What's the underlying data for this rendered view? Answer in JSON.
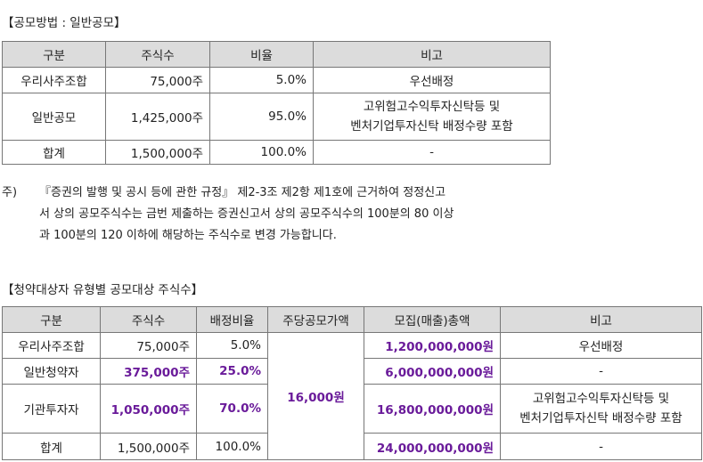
{
  "section1": {
    "heading": "【공모방법 : 일반공모】",
    "headers": [
      "구분",
      "주식수",
      "비율",
      "비고"
    ],
    "rows": [
      [
        "우리사주조합",
        "75,000주",
        "5.0%",
        "우선배정"
      ],
      [
        "일반공모",
        "1,425,000주",
        "95.0%",
        "고위험고수익투자신탁등 및\n벤처기업투자신탁 배정수량 포함"
      ],
      [
        "합계",
        "1,500,000주",
        "100.0%",
        "-"
      ]
    ]
  },
  "note": {
    "mark": "주)",
    "lines": [
      "『증권의 발행 및 공시 등에 관한 규정』 제2-3조 제2항 제1호에 근거하여 정정신고",
      "서 상의 공모주식수는 금번 제출하는 증권신고서 상의 공모주식수의 100분의 80 이상",
      "과 100분의 120 이하에 해당하는 주식수로 변경 가능합니다."
    ]
  },
  "section2": {
    "heading": "【청약대상자 유형별 공모대상 주식수】",
    "headers": [
      "구분",
      "주식수",
      "배정비율",
      "주당공모가액",
      "모집(매출)총액",
      "비고"
    ],
    "price": "16,000원",
    "rows": [
      {
        "cat": "우리사주조합",
        "shares": "75,000주",
        "ratio": "5.0%",
        "total": "1,200,000,000원",
        "note": "우선배정"
      },
      {
        "cat": "일반청약자",
        "shares": "375,000주",
        "ratio": "25.0%",
        "total": "6,000,000,000원",
        "note": "-"
      },
      {
        "cat": "기관투자자",
        "shares": "1,050,000주",
        "ratio": "70.0%",
        "total": "16,800,000,000원",
        "note": "고위험고수익투자신탁등 및\n벤처기업투자신탁 배정수량 포함"
      },
      {
        "cat": "합계",
        "shares": "1,500,000주",
        "ratio": "100.0%",
        "total": "24,000,000,000원",
        "note": "-"
      }
    ]
  },
  "colors": {
    "header_bg": "#dcdcdc",
    "highlight": "#6a1b9a",
    "border": "#777777"
  }
}
